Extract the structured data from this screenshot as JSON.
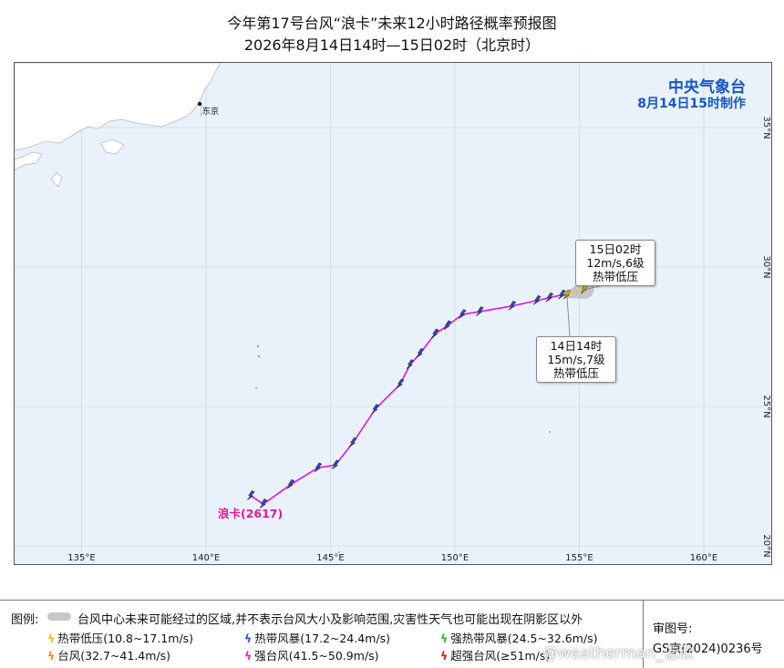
{
  "title": {
    "line1": "今年第17号台风“浪卡”未来12小时路径概率预报图",
    "line2": "2026年8月14日14时—15日02时（北京时）"
  },
  "agency": {
    "name": "中央气象台",
    "issued": "8月14日15时制作"
  },
  "map": {
    "city_label": "东京",
    "lon_labels": [
      "135°E",
      "140°E",
      "145°E",
      "150°E",
      "155°E",
      "160°E"
    ],
    "lat_labels": [
      "20°N",
      "25°N",
      "30°N",
      "35°N"
    ],
    "colors": {
      "ocean": "#e9f2fb",
      "land": "#ffffff",
      "track": "#e414e4",
      "cone": "#c7c7cb"
    }
  },
  "storm": {
    "label": "浪卡(2617)",
    "past_track": [
      {
        "lon": 141.8,
        "lat": 21.8
      },
      {
        "lon": 142.3,
        "lat": 21.5
      },
      {
        "lon": 143.4,
        "lat": 22.2
      },
      {
        "lon": 144.5,
        "lat": 22.8
      },
      {
        "lon": 145.2,
        "lat": 22.9
      },
      {
        "lon": 145.9,
        "lat": 23.7
      },
      {
        "lon": 146.8,
        "lat": 24.9
      },
      {
        "lon": 147.8,
        "lat": 25.8
      },
      {
        "lon": 148.2,
        "lat": 26.5
      },
      {
        "lon": 148.6,
        "lat": 26.9
      },
      {
        "lon": 149.2,
        "lat": 27.6
      },
      {
        "lon": 149.7,
        "lat": 27.9
      },
      {
        "lon": 150.3,
        "lat": 28.3
      },
      {
        "lon": 151.0,
        "lat": 28.4
      },
      {
        "lon": 152.3,
        "lat": 28.6
      },
      {
        "lon": 153.3,
        "lat": 28.8
      },
      {
        "lon": 153.8,
        "lat": 28.9
      },
      {
        "lon": 154.3,
        "lat": 29.0
      }
    ],
    "current": {
      "lon": 154.5,
      "lat": 29.0,
      "lines": [
        "14日14时",
        "15m/s,7级",
        "热带低压"
      ]
    },
    "forecast": {
      "lon": 155.2,
      "lat": 29.2,
      "lines": [
        "15日02时",
        "12m/s,6级",
        "热带低压"
      ]
    }
  },
  "legend": {
    "title": "图例:",
    "cone_note": "台风中心未来可能经过的区域,并不表示台风大小及影响范围,灾害性天气也可能出现在阴影区以外",
    "items": [
      {
        "symbol": "ϟ",
        "color": "#f0c000",
        "label": "热带低压(10.8~17.1m/s)"
      },
      {
        "symbol": "ϟ",
        "color": "#2a4fd8",
        "label": "热带风暴(17.2~24.4m/s)"
      },
      {
        "symbol": "ϟ",
        "color": "#20b030",
        "label": "强热带风暴(24.5~32.6m/s)"
      },
      {
        "symbol": "ϟ",
        "color": "#f08a10",
        "label": "台风(32.7~41.4m/s)"
      },
      {
        "symbol": "ϟ",
        "color": "#e020d0",
        "label": "强台风(41.5~50.9m/s)"
      },
      {
        "symbol": "ϟ",
        "color": "#e01010",
        "label": "超强台风(≥51m/s)"
      }
    ],
    "approval_label": "审图号:",
    "approval_number": "GS京(2024)0236号"
  },
  "watermark": "@weatherman_信欣"
}
